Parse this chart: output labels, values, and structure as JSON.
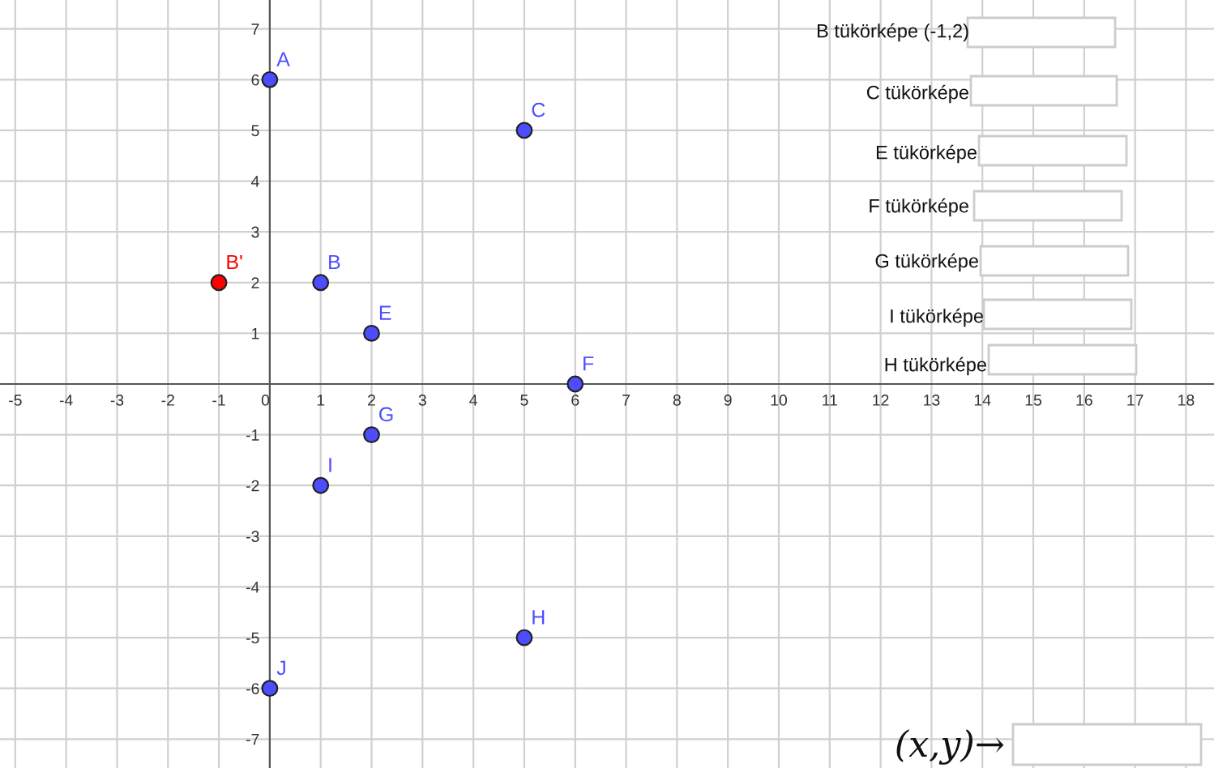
{
  "chart_data": {
    "type": "scatter",
    "series": [
      {
        "color": "#4d4dff",
        "x": [
          0,
          1,
          5,
          2,
          6,
          2,
          1,
          5,
          0
        ],
        "values": [
          6,
          2,
          5,
          1,
          0,
          -1,
          -2,
          -5,
          -6
        ],
        "value_labels": [
          "A",
          "B",
          "C",
          "E",
          "F",
          "G",
          "I",
          "H",
          "J"
        ]
      },
      {
        "color": "#ff0000",
        "x": [
          -1
        ],
        "values": [
          2
        ],
        "value_labels": [
          "B'"
        ]
      }
    ],
    "xlim": [
      -5.3,
      18.55
    ],
    "ylim": [
      -7.57,
      7.57
    ],
    "xticks": [
      -5,
      -4,
      -3,
      -2,
      -1,
      0,
      1,
      2,
      3,
      4,
      5,
      6,
      7,
      8,
      9,
      10,
      11,
      12,
      13,
      14,
      15,
      16,
      17,
      18
    ],
    "yticks": [
      -7,
      -6,
      -5,
      -4,
      -3,
      -2,
      -1,
      1,
      2,
      3,
      4,
      5,
      6,
      7
    ],
    "grid": true,
    "marker": "circle",
    "annotations": [
      "B tükörképe (-1,2)",
      "C tükörképe",
      "E tükörképe",
      "F tükörképe",
      "G tükörképe",
      "I tükörképe",
      "H tükörképe",
      "(x,y)→"
    ]
  }
}
